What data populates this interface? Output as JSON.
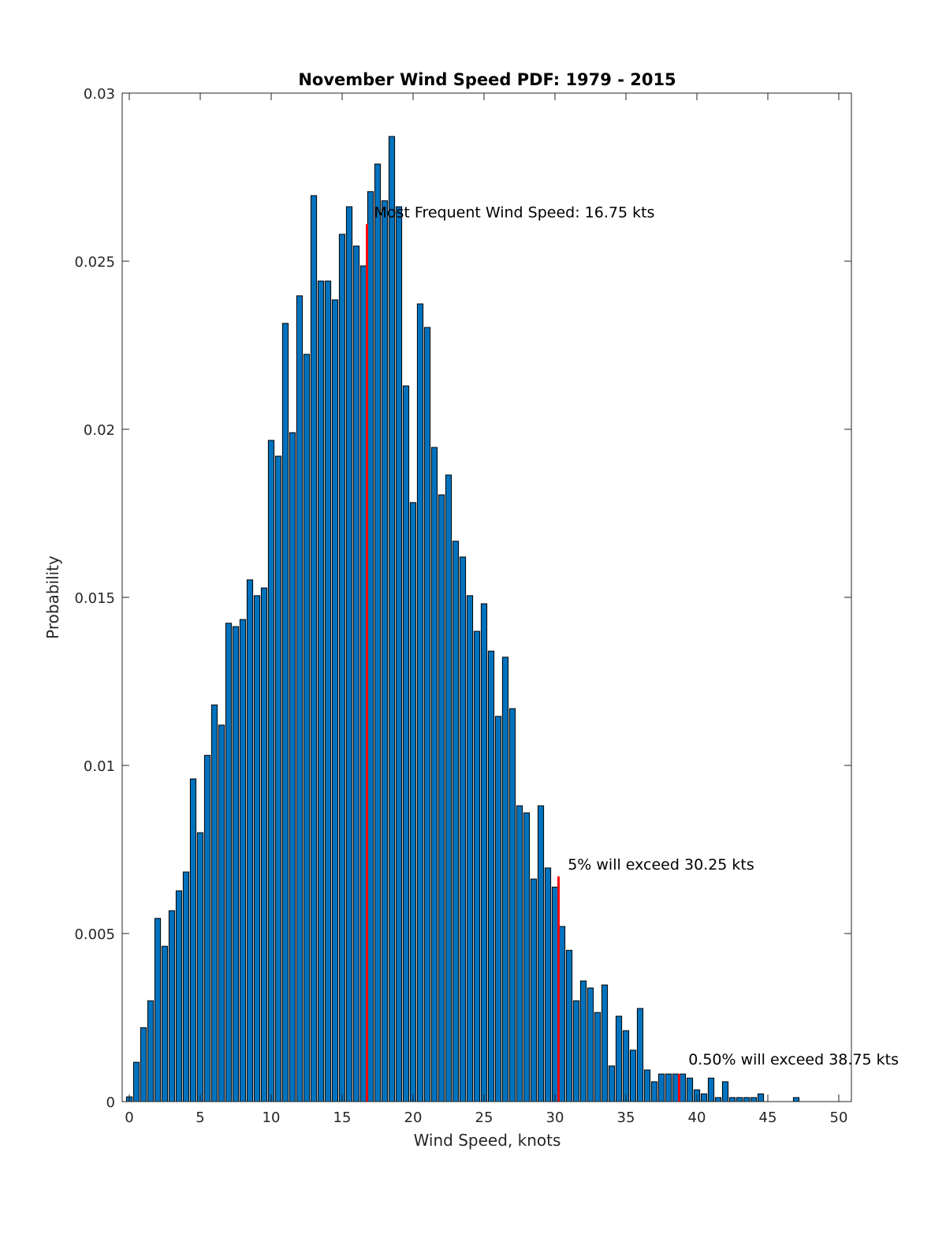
{
  "chart_data": {
    "type": "bar",
    "title": "November Wind Speed PDF: 1979 - 2015",
    "xlabel": "Wind Speed, knots",
    "ylabel": "Probability",
    "xlim": [
      -0.5,
      51
    ],
    "ylim": [
      0,
      0.03
    ],
    "xticks": [
      0,
      5,
      10,
      15,
      20,
      25,
      30,
      35,
      40,
      45,
      50
    ],
    "xtick_labels": [
      "0",
      "5",
      "10",
      "15",
      "20",
      "25",
      "30",
      "35",
      "40",
      "45",
      "50"
    ],
    "yticks": [
      0,
      0.005,
      0.01,
      0.015,
      0.02,
      0.025,
      0.03
    ],
    "ytick_labels": [
      "0",
      "0.005",
      "0.01",
      "0.015",
      "0.02",
      "0.025",
      "0.03"
    ],
    "bar_width_knots": 0.5,
    "x_start": 0,
    "x_step": 0.5,
    "values": [
      0.00014,
      0.00117,
      0.0022,
      0.003,
      0.00545,
      0.00462,
      0.00568,
      0.00627,
      0.00683,
      0.0096,
      0.008,
      0.0103,
      0.0118,
      0.0112,
      0.01423,
      0.01413,
      0.01434,
      0.01552,
      0.01505,
      0.01528,
      0.01967,
      0.0192,
      0.02315,
      0.0199,
      0.02397,
      0.02223,
      0.02695,
      0.02441,
      0.02441,
      0.02385,
      0.0258,
      0.02662,
      0.02545,
      0.02486,
      0.02707,
      0.02789,
      0.0268,
      0.02871,
      0.02662,
      0.02129,
      0.01782,
      0.02373,
      0.02303,
      0.01946,
      0.01805,
      0.01864,
      0.01667,
      0.0162,
      0.01505,
      0.01399,
      0.01481,
      0.0134,
      0.01146,
      0.01322,
      0.01169,
      0.0088,
      0.00859,
      0.00662,
      0.0088,
      0.00695,
      0.00638,
      0.00521,
      0.0045,
      0.003,
      0.00359,
      0.00338,
      0.00265,
      0.00347,
      0.00106,
      0.00254,
      0.00211,
      0.00153,
      0.00277,
      0.00094,
      0.00059,
      0.00082,
      0.00082,
      0.00082,
      0.00082,
      0.0007,
      0.00035,
      0.00023,
      0.0007,
      0.00012,
      0.00059,
      0.00012,
      0.00012,
      0.00012,
      0.00012,
      0.00023,
      0,
      0,
      0,
      0,
      0.00012,
      0,
      0,
      0,
      0,
      0,
      0
    ],
    "bar_color": "#0072BD",
    "marker_color": "#FF0000",
    "markers": [
      {
        "x": 16.75,
        "y": 0.0261,
        "label": "Most Frequent Wind Speed: 16.75 kts",
        "label_x": 17.25,
        "label_y": 0.0263
      },
      {
        "x": 30.25,
        "y": 0.0067,
        "label": "5% will exceed 30.25 kts",
        "label_x": 30.9,
        "label_y": 0.0069
      },
      {
        "x": 38.75,
        "y": 0.00082,
        "label": "0.50% will exceed 38.75 kts",
        "label_x": 39.4,
        "label_y": 0.0011
      }
    ],
    "grid": false,
    "legend": "none"
  }
}
